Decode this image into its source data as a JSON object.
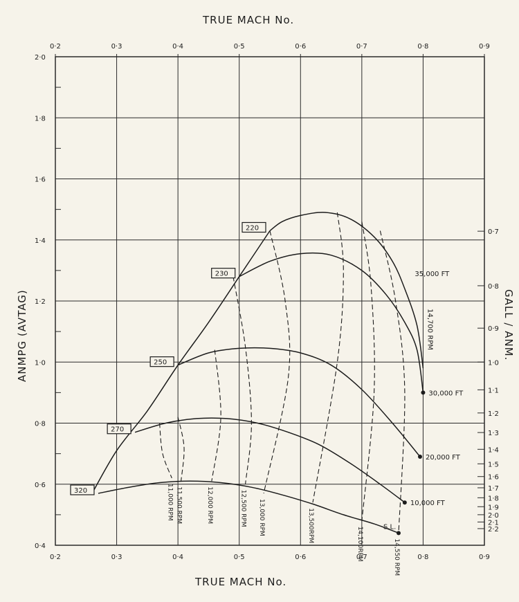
{
  "chart_data": {
    "type": "line",
    "title": "TRUE MACH No.",
    "xlabel": "TRUE MACH No.",
    "ylabel": "ANMPG (AVTAG)",
    "y2label": "GALL / ANM.",
    "xlim": [
      0.2,
      0.9
    ],
    "ylim": [
      0.4,
      2.0
    ],
    "x_ticks": [
      "0·2",
      "0·3",
      "0·4",
      "0·5",
      "0·6",
      "0·7",
      "0·8",
      "0·9"
    ],
    "y_ticks": [
      "0·4",
      "0·6",
      "0·8",
      "1·0",
      "1·2",
      "1·4",
      "1·6",
      "1·8",
      "2·0"
    ],
    "y2_ticks": [
      {
        "label": "0·7",
        "anmpg": 1.4286
      },
      {
        "label": "0·8",
        "anmpg": 1.25
      },
      {
        "label": "0·9",
        "anmpg": 1.1111
      },
      {
        "label": "1·0",
        "anmpg": 1.0
      },
      {
        "label": "1·1",
        "anmpg": 0.9091
      },
      {
        "label": "1·2",
        "anmpg": 0.8333
      },
      {
        "label": "1·3",
        "anmpg": 0.7692
      },
      {
        "label": "1·4",
        "anmpg": 0.7143
      },
      {
        "label": "1·5",
        "anmpg": 0.6667
      },
      {
        "label": "1·6",
        "anmpg": 0.625
      },
      {
        "label": "1·7",
        "anmpg": 0.5882
      },
      {
        "label": "1·8",
        "anmpg": 0.5556
      },
      {
        "label": "1·9",
        "anmpg": 0.5263
      },
      {
        "label": "2·0",
        "anmpg": 0.5
      },
      {
        "label": "2·1",
        "anmpg": 0.4762
      },
      {
        "label": "2·2",
        "anmpg": 0.4545
      }
    ],
    "grid": true,
    "series": [
      {
        "name": "220",
        "x": [
          0.55,
          0.57,
          0.6,
          0.64,
          0.68,
          0.72,
          0.75,
          0.77,
          0.79,
          0.8
        ],
        "y": [
          1.43,
          1.46,
          1.48,
          1.49,
          1.47,
          1.41,
          1.33,
          1.24,
          1.12,
          0.98
        ]
      },
      {
        "name": "230",
        "x": [
          0.5,
          0.55,
          0.6,
          0.65,
          0.7,
          0.74,
          0.77,
          0.79,
          0.8
        ],
        "y": [
          1.28,
          1.33,
          1.355,
          1.35,
          1.3,
          1.22,
          1.13,
          1.04,
          0.9
        ]
      },
      {
        "name": "250",
        "x": [
          0.4,
          0.45,
          0.5,
          0.55,
          0.6,
          0.65,
          0.7,
          0.75,
          0.795
        ],
        "y": [
          0.99,
          1.03,
          1.045,
          1.045,
          1.03,
          0.99,
          0.91,
          0.8,
          0.69
        ]
      },
      {
        "name": "270",
        "x": [
          0.33,
          0.38,
          0.43,
          0.48,
          0.53,
          0.58,
          0.63,
          0.68,
          0.73,
          0.77
        ],
        "y": [
          0.77,
          0.8,
          0.815,
          0.815,
          0.8,
          0.77,
          0.73,
          0.67,
          0.6,
          0.54
        ]
      },
      {
        "name": "320",
        "x": [
          0.27,
          0.32,
          0.37,
          0.42,
          0.47,
          0.52,
          0.57,
          0.62,
          0.67,
          0.72,
          0.76
        ],
        "y": [
          0.57,
          0.59,
          0.605,
          0.61,
          0.605,
          0.59,
          0.565,
          0.535,
          0.5,
          0.47,
          0.44
        ]
      }
    ],
    "envelope": {
      "x": [
        0.26,
        0.3,
        0.35,
        0.4,
        0.45,
        0.5,
        0.55
      ],
      "y": [
        0.57,
        0.71,
        0.84,
        0.99,
        1.13,
        1.28,
        1.43
      ]
    },
    "rpm_lines": [
      {
        "label": "11,000 RPM",
        "x": [
          0.37,
          0.375,
          0.39
        ],
        "y": [
          0.8,
          0.7,
          0.62
        ]
      },
      {
        "label": "11,500 RPM",
        "x": [
          0.4,
          0.41,
          0.405
        ],
        "y": [
          0.82,
          0.72,
          0.61
        ]
      },
      {
        "label": "12,000 RPM",
        "x": [
          0.46,
          0.47,
          0.455
        ],
        "y": [
          1.04,
          0.82,
          0.61
        ]
      },
      {
        "label": "12,500 RPM",
        "x": [
          0.49,
          0.51,
          0.52,
          0.51
        ],
        "y": [
          1.28,
          1.05,
          0.8,
          0.6
        ]
      },
      {
        "label": "13,000 RPM",
        "x": [
          0.55,
          0.575,
          0.58,
          0.54
        ],
        "y": [
          1.43,
          1.2,
          0.95,
          0.57
        ]
      },
      {
        "label": "13,500RPM",
        "x": [
          0.66,
          0.67,
          0.66,
          0.62
        ],
        "y": [
          1.49,
          1.3,
          1.0,
          0.54
        ]
      },
      {
        "label": "14,100RPM",
        "x": [
          0.7,
          0.715,
          0.72,
          0.7
        ],
        "y": [
          1.46,
          1.25,
          0.9,
          0.48
        ]
      },
      {
        "label": "14,550 RPM",
        "x": [
          0.73,
          0.755,
          0.77,
          0.76
        ],
        "y": [
          1.43,
          1.2,
          0.9,
          0.44
        ]
      }
    ],
    "altitude_points": [
      {
        "label": "35,000 FT",
        "x": 0.8,
        "y": 1.1
      },
      {
        "label": "14,700 RPM",
        "x": 0.8,
        "y": 1.1
      },
      {
        "label": "30,000 FT",
        "x": 0.8,
        "y": 0.9
      },
      {
        "label": "20,000 FT",
        "x": 0.795,
        "y": 0.69
      },
      {
        "label": "10,000 FT",
        "x": 0.77,
        "y": 0.54
      },
      {
        "label": "S.L.",
        "x": 0.76,
        "y": 0.44
      }
    ]
  }
}
